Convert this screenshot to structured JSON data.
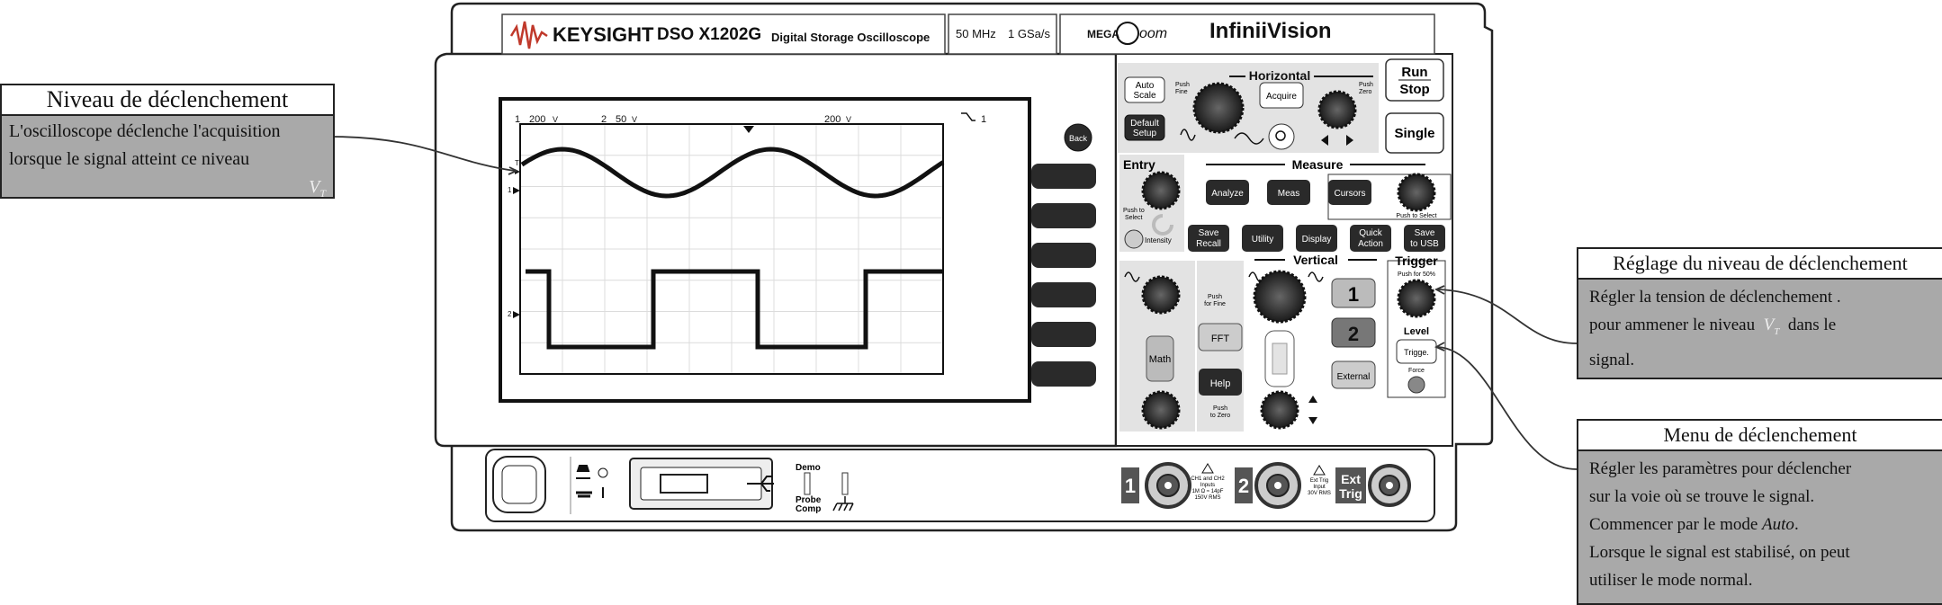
{
  "instrument": {
    "brand": "KEYSIGHT",
    "model": "DSO X1202G",
    "description": "Digital Storage Oscilloscope",
    "bandwidth": "50 MHz",
    "sample_rate": "1 GSa/s",
    "megazoom_a": "MEGA",
    "megazoom_b": "oom",
    "series": "InfiniiVision"
  },
  "screen": {
    "ch1_label": "1",
    "ch1_scale": "200",
    "ch2_label": "2",
    "ch2_scale": "50",
    "time_scale": "200",
    "trigger_ch": "1",
    "marker_t": "T",
    "marker_1": "1",
    "marker_2": "2"
  },
  "buttons": {
    "back": "Back",
    "auto_scale": [
      "Auto",
      "Scale"
    ],
    "default_setup": [
      "Default",
      "Setup"
    ],
    "acquire": "Acquire",
    "run": "Run",
    "stop": "Stop",
    "single": "Single",
    "analyze": "Analyze",
    "meas": "Meas",
    "cursors": "Cursors",
    "save_recall": [
      "Save",
      "Recall"
    ],
    "utility": "Utility",
    "display": "Display",
    "quick_action": [
      "Quick",
      "Action"
    ],
    "save_usb": [
      "Save",
      "to USB"
    ],
    "fft": "FFT",
    "math": "Math",
    "help": "Help",
    "ch1": "1",
    "ch2": "2",
    "external": "External",
    "trigger_btn": "Trigge.",
    "force": "Force"
  },
  "labels": {
    "horizontal": "Horizontal",
    "push_fine_a": "Push",
    "push_fine_b": "Fine",
    "push_zero_a": "Push",
    "push_zero_b": "Zero",
    "entry": "Entry",
    "push_select_a": "Push to",
    "push_select_b": "Select",
    "intensity": "Intensity",
    "measure": "Measure",
    "push_to_select": "Push to Select",
    "vertical": "Vertical",
    "push_for_fine_a": "Push",
    "push_for_fine_b": "for Fine",
    "push_to_zero_a": "Push",
    "push_to_zero_b": "to Zero",
    "trigger": "Trigger",
    "push_50": "Push for 50%",
    "level": "Level"
  },
  "front": {
    "demo": "Demo",
    "probe": "Probe",
    "comp": "Comp",
    "ch1": "1",
    "ch2": "2",
    "ext_a": "Ext",
    "ext_b": "Trig",
    "warn1": [
      "CH1 and CH2",
      "Inputs",
      "1M Ω ≈ 14pF",
      "150V RMS"
    ],
    "warn2": [
      "Ext Trig",
      "Input",
      "30V RMS"
    ]
  },
  "callouts": {
    "niveau": {
      "title": "Niveau de déclenchement",
      "line1": "L'oscilloscope déclenche l'acquisition",
      "line2": "lorsque le signal atteint ce niveau",
      "vt": "V",
      "vt_sub": "T"
    },
    "reglage": {
      "title": "Réglage du niveau de déclenchement",
      "line1": "Régler la tension de déclenchement .",
      "line2a": "pour ammener le niveau",
      "line2_vt": "V",
      "line2_vt_sub": "T",
      "line2b": "dans  le",
      "line3": "signal."
    },
    "menu": {
      "title": "Menu de déclenchement",
      "line1": "Régler les paramètres pour déclencher",
      "line2": "sur la voie où se trouve le signal.",
      "line3a": "Commencer par le mode",
      "line3_mode": "Auto",
      "line3b": ".",
      "line4": "Lorsque le signal est stabilisé, on peut",
      "line5": "utiliser le mode normal."
    }
  }
}
